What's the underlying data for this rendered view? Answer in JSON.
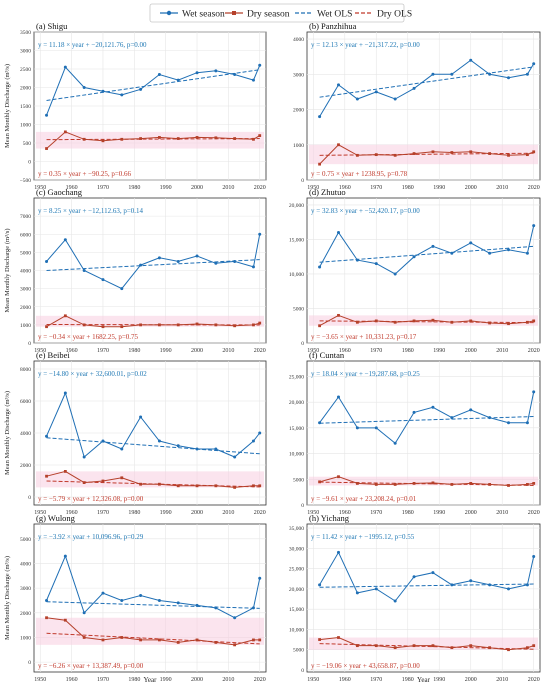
{
  "legend": {
    "items": [
      {
        "label": "Wet season",
        "kind": "line-marker",
        "color": "#1f6fb5",
        "marker": "circle"
      },
      {
        "label": "Dry season",
        "kind": "line-marker",
        "color": "#b5402a",
        "marker": "square"
      },
      {
        "label": "Wet OLS",
        "kind": "dashed",
        "color": "#1f6fb5"
      },
      {
        "label": "Dry OLS",
        "kind": "dashed",
        "color": "#c0392b"
      }
    ]
  },
  "axis": {
    "xlabel": "Year",
    "ylabel": "Mean Monthly Discharge (m³/s)"
  },
  "colors": {
    "wet": "#1f6fb5",
    "dry": "#b5402a",
    "dry_band": "#f7cde0",
    "wet_eq": "#1f78b4",
    "dry_eq": "#c0392b"
  },
  "chart_data": [
    {
      "type": "line",
      "title": "(a) Shigu",
      "x": [
        1952,
        1958,
        1964,
        1970,
        1976,
        1982,
        1988,
        1994,
        2000,
        2006,
        2012,
        2018,
        2020
      ],
      "xlim": [
        1948,
        2022
      ],
      "xticks": [
        1950,
        1960,
        1970,
        1980,
        1990,
        2000,
        2010,
        2020
      ],
      "ylim": [
        -500,
        3500
      ],
      "yticks": [
        -500,
        0,
        500,
        1000,
        1500,
        2000,
        2500,
        3000,
        3500
      ],
      "series": [
        {
          "name": "Wet season",
          "values": [
            1250,
            2550,
            2000,
            1900,
            1800,
            1950,
            2350,
            2200,
            2400,
            2450,
            2350,
            2200,
            2600
          ]
        },
        {
          "name": "Dry season",
          "values": [
            350,
            800,
            600,
            560,
            600,
            620,
            650,
            620,
            650,
            640,
            620,
            600,
            700
          ]
        }
      ],
      "wet_equation": "y = 11.18 × year + −20,121.76, p=0.00",
      "dry_equation": "y = 0.35 × year + −90.25, p=0.66",
      "wet_ols": [
        1650,
        2480
      ],
      "dry_ols": [
        590,
        620
      ]
    },
    {
      "type": "line",
      "title": "(b) Panzhihua",
      "x": [
        1952,
        1958,
        1964,
        1970,
        1976,
        1982,
        1988,
        1994,
        2000,
        2006,
        2012,
        2018,
        2020
      ],
      "xlim": [
        1948,
        2022
      ],
      "xticks": [
        1950,
        1960,
        1970,
        1980,
        1990,
        2000,
        2010,
        2020
      ],
      "ylim": [
        0,
        4200
      ],
      "yticks": [
        0,
        1000,
        2000,
        3000,
        4000
      ],
      "series": [
        {
          "name": "Wet season",
          "values": [
            1800,
            2700,
            2300,
            2500,
            2300,
            2600,
            3000,
            3000,
            3400,
            3000,
            2900,
            3000,
            3300
          ]
        },
        {
          "name": "Dry season",
          "values": [
            450,
            1000,
            700,
            720,
            700,
            750,
            800,
            780,
            800,
            750,
            700,
            720,
            800
          ]
        }
      ],
      "wet_equation": "y = 12.13 × year + −21,317.22, p=0.00",
      "dry_equation": "y = 0.75 × year + 1238.95, p=0.78",
      "wet_ols": [
        2350,
        3210
      ],
      "dry_ols": [
        700,
        760
      ]
    },
    {
      "type": "line",
      "title": "(c) Gaochang",
      "x": [
        1952,
        1958,
        1964,
        1970,
        1976,
        1982,
        1988,
        1994,
        2000,
        2006,
        2012,
        2018,
        2020
      ],
      "xlim": [
        1948,
        2022
      ],
      "xticks": [
        1950,
        1960,
        1970,
        1980,
        1990,
        2000,
        2010,
        2020
      ],
      "ylim": [
        0,
        8000
      ],
      "yticks": [
        0,
        1000,
        2000,
        3000,
        4000,
        5000,
        6000,
        7000
      ],
      "series": [
        {
          "name": "Wet season",
          "values": [
            4500,
            5700,
            4000,
            3500,
            3000,
            4300,
            4700,
            4500,
            4800,
            4400,
            4500,
            4200,
            6000
          ]
        },
        {
          "name": "Dry season",
          "values": [
            900,
            1500,
            1000,
            900,
            900,
            1000,
            1000,
            1000,
            1050,
            1000,
            950,
            1000,
            1100
          ]
        }
      ],
      "wet_equation": "y = 8.25 × year + −12,112.63, p=0.14",
      "dry_equation": "y = −0.34 × year + 1682.25, p=0.75",
      "wet_ols": [
        4000,
        4600
      ],
      "dry_ols": [
        1020,
        995
      ]
    },
    {
      "type": "line",
      "title": "(d) Zhutuo",
      "x": [
        1952,
        1958,
        1964,
        1970,
        1976,
        1982,
        1988,
        1994,
        2000,
        2006,
        2012,
        2018,
        2020
      ],
      "xlim": [
        1948,
        2022
      ],
      "xticks": [
        1950,
        1960,
        1970,
        1980,
        1990,
        2000,
        2010,
        2020
      ],
      "ylim": [
        0,
        21000
      ],
      "yticks": [
        0,
        5000,
        10000,
        15000,
        20000
      ],
      "series": [
        {
          "name": "Wet season",
          "values": [
            11000,
            16000,
            12000,
            11500,
            10000,
            12500,
            14000,
            13000,
            14500,
            13000,
            13500,
            13000,
            17000
          ]
        },
        {
          "name": "Dry season",
          "values": [
            2500,
            4000,
            3000,
            3200,
            3000,
            3200,
            3300,
            3000,
            3200,
            2900,
            2800,
            3000,
            3200
          ]
        }
      ],
      "wet_equation": "y = 32.83 × year + −52,420.17, p=0.00",
      "dry_equation": "y = −3.65 × year + 10,331.23, p=0.17",
      "wet_ols": [
        11700,
        14000
      ],
      "dry_ols": [
        3200,
        2950
      ]
    },
    {
      "type": "line",
      "title": "(e) Beibei",
      "x": [
        1952,
        1958,
        1964,
        1970,
        1976,
        1982,
        1988,
        1994,
        2000,
        2006,
        2012,
        2018,
        2020
      ],
      "xlim": [
        1948,
        2022
      ],
      "xticks": [
        1950,
        1960,
        1970,
        1980,
        1990,
        2000,
        2010,
        2020
      ],
      "ylim": [
        -500,
        8500
      ],
      "yticks": [
        0,
        2000,
        4000,
        6000,
        8000
      ],
      "series": [
        {
          "name": "Wet season",
          "values": [
            3800,
            6500,
            2500,
            3500,
            3000,
            5000,
            3500,
            3200,
            3000,
            3000,
            2500,
            3500,
            4000
          ]
        },
        {
          "name": "Dry season",
          "values": [
            1300,
            1600,
            900,
            1000,
            1200,
            800,
            800,
            700,
            700,
            700,
            600,
            700,
            700
          ]
        }
      ],
      "wet_equation": "y = −14.80 × year + 32,600.01, p=0.02",
      "dry_equation": "y = −5.79 × year + 12,326.08, p=0.00",
      "wet_ols": [
        3700,
        2700
      ],
      "dry_ols": [
        1000,
        630
      ]
    },
    {
      "type": "line",
      "title": "(f) Cuntan",
      "x": [
        1952,
        1958,
        1964,
        1970,
        1976,
        1982,
        1988,
        1994,
        2000,
        2006,
        2012,
        2018,
        2020
      ],
      "xlim": [
        1948,
        2022
      ],
      "xticks": [
        1950,
        1960,
        1970,
        1980,
        1990,
        2000,
        2010,
        2020
      ],
      "ylim": [
        0,
        28000
      ],
      "yticks": [
        0,
        5000,
        10000,
        15000,
        20000,
        25000
      ],
      "series": [
        {
          "name": "Wet season",
          "values": [
            16000,
            21000,
            15000,
            15000,
            12000,
            18000,
            19000,
            17000,
            18500,
            17000,
            16000,
            16000,
            22000
          ]
        },
        {
          "name": "Dry season",
          "values": [
            4500,
            5500,
            4200,
            4000,
            4000,
            4200,
            4300,
            4000,
            4200,
            4000,
            3800,
            4000,
            4200
          ]
        }
      ],
      "wet_equation": "y = 18.04 × year + −19,287.68, p=0.25",
      "dry_equation": "y = −9.61 × year + 23,208.24, p=0.01",
      "wet_ols": [
        15900,
        17200
      ],
      "dry_ols": [
        4450,
        3800
      ]
    },
    {
      "type": "line",
      "title": "(g) Wulong",
      "x": [
        1952,
        1958,
        1964,
        1970,
        1976,
        1982,
        1988,
        1994,
        2000,
        2006,
        2012,
        2018,
        2020
      ],
      "xlim": [
        1948,
        2022
      ],
      "xticks": [
        1950,
        1960,
        1970,
        1980,
        1990,
        2000,
        2010,
        2020
      ],
      "ylim": [
        -400,
        5600
      ],
      "yticks": [
        0,
        1000,
        2000,
        3000,
        4000,
        5000
      ],
      "series": [
        {
          "name": "Wet season",
          "values": [
            2500,
            4300,
            2000,
            2800,
            2500,
            2700,
            2500,
            2400,
            2300,
            2200,
            1800,
            2200,
            3400
          ]
        },
        {
          "name": "Dry season",
          "values": [
            1800,
            1700,
            1000,
            900,
            1000,
            900,
            900,
            800,
            900,
            800,
            700,
            900,
            900
          ]
        }
      ],
      "wet_equation": "y = −3.92 × year + 10,096.96, p=0.29",
      "dry_equation": "y = −6.26 × year + 13,387.49, p=0.00",
      "wet_ols": [
        2450,
        2180
      ],
      "dry_ols": [
        1170,
        740
      ]
    },
    {
      "type": "line",
      "title": "(h) Yichang",
      "x": [
        1952,
        1958,
        1964,
        1970,
        1976,
        1982,
        1988,
        1994,
        2000,
        2006,
        2012,
        2018,
        2020
      ],
      "xlim": [
        1948,
        2022
      ],
      "xticks": [
        1950,
        1960,
        1970,
        1980,
        1990,
        2000,
        2010,
        2020
      ],
      "ylim": [
        -500,
        36000
      ],
      "yticks": [
        0,
        5000,
        10000,
        15000,
        20000,
        25000,
        30000,
        35000
      ],
      "series": [
        {
          "name": "Wet season",
          "values": [
            21000,
            29000,
            19000,
            20000,
            17000,
            23000,
            24000,
            21000,
            22000,
            21000,
            20000,
            21000,
            28000
          ]
        },
        {
          "name": "Dry season",
          "values": [
            7500,
            8000,
            6000,
            6000,
            5500,
            6000,
            6000,
            5500,
            6000,
            5500,
            5000,
            5500,
            6000
          ]
        }
      ],
      "wet_equation": "y = 11.42 × year + −1995.12, p=0.55",
      "dry_equation": "y = −19.06 × year + 43,658.87, p=0.00",
      "wet_ols": [
        20400,
        21200
      ],
      "dry_ols": [
        6500,
        5100
      ]
    }
  ]
}
